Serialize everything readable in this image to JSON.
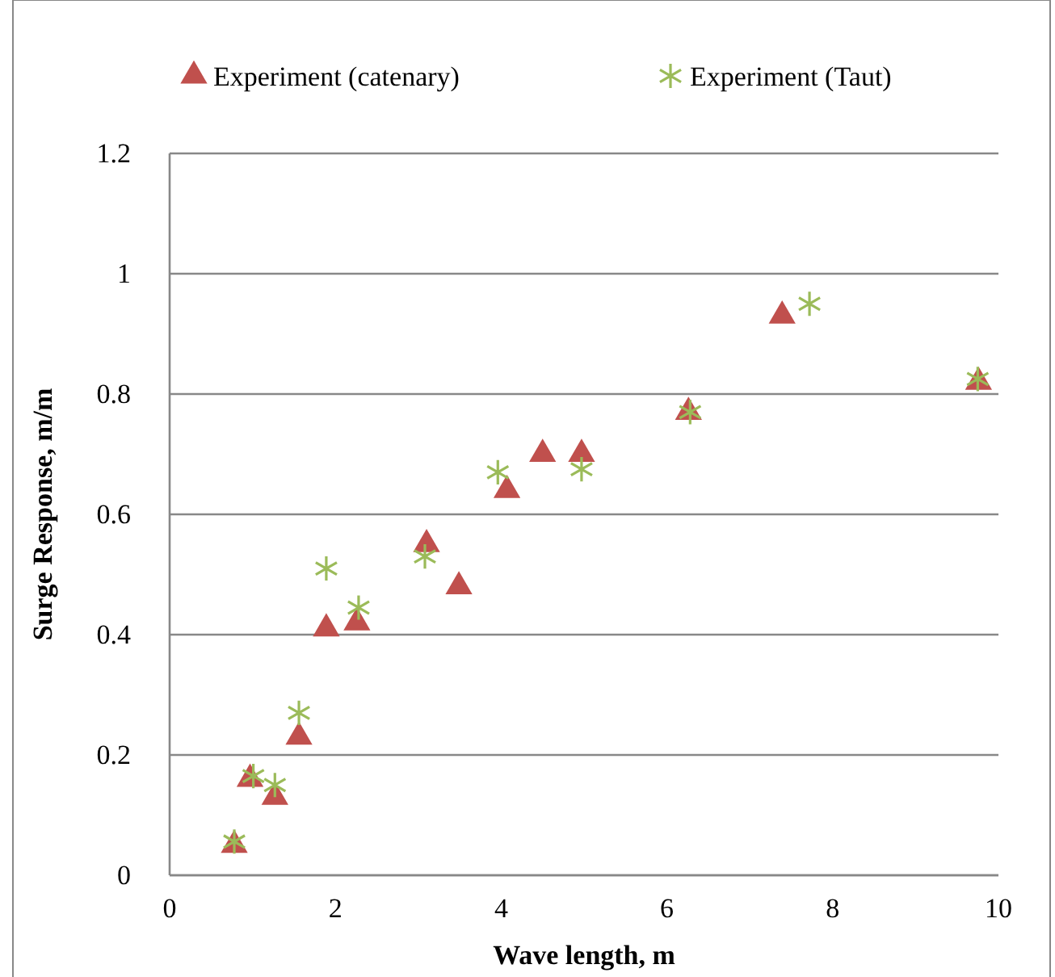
{
  "chart_data": {
    "type": "scatter",
    "xlabel": "Wave length, m",
    "ylabel": "Surge Response, m/m",
    "xlim": [
      0,
      10
    ],
    "xticks": [
      0,
      2,
      4,
      6,
      8,
      10
    ],
    "ylim": [
      0,
      1.2
    ],
    "yticks": [
      0,
      0.2,
      0.4,
      0.6,
      0.8,
      1,
      1.2
    ],
    "grid": "y",
    "legend": "top",
    "series": [
      {
        "name": "Experiment (catenary)",
        "color": "#c0504d",
        "marker": "triangle",
        "x": [
          0.78,
          0.97,
          1.27,
          1.56,
          1.89,
          2.26,
          3.1,
          3.49,
          4.07,
          4.5,
          4.97,
          6.26,
          7.39,
          9.76
        ],
        "values": [
          0.05,
          0.16,
          0.13,
          0.23,
          0.41,
          0.42,
          0.55,
          0.48,
          0.64,
          0.7,
          0.7,
          0.77,
          0.93,
          0.82
        ]
      },
      {
        "name": "Experiment (Taut)",
        "color": "#9bbb59",
        "marker": "cross",
        "x": [
          0.78,
          1.01,
          1.27,
          1.56,
          1.89,
          2.28,
          3.08,
          3.96,
          4.97,
          6.28,
          7.72,
          9.75
        ],
        "values": [
          0.056,
          0.165,
          0.15,
          0.27,
          0.51,
          0.445,
          0.53,
          0.67,
          0.675,
          0.77,
          0.95,
          0.825
        ]
      }
    ]
  }
}
